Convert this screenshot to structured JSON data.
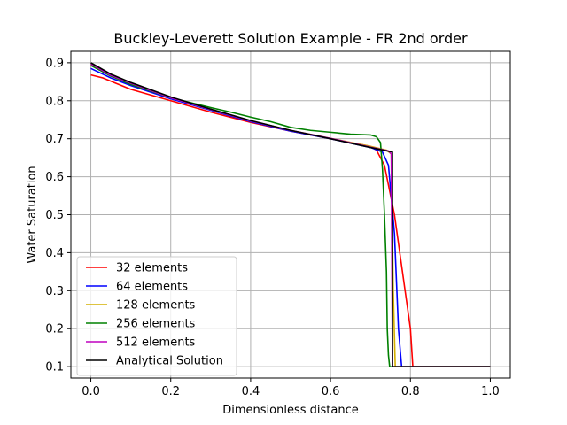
{
  "chart_data": {
    "type": "line",
    "title": "Buckley-Leverett Solution Example - FR 2nd order",
    "xlabel": "Dimensionless distance",
    "ylabel": "Water Saturation",
    "xlim": [
      -0.05,
      1.05
    ],
    "ylim": [
      0.07,
      0.93
    ],
    "xticks": [
      0.0,
      0.2,
      0.4,
      0.6,
      0.8,
      1.0
    ],
    "xtick_labels": [
      "0.0",
      "0.2",
      "0.4",
      "0.6",
      "0.8",
      "1.0"
    ],
    "yticks": [
      0.1,
      0.2,
      0.3,
      0.4,
      0.5,
      0.6,
      0.7,
      0.8,
      0.9
    ],
    "ytick_labels": [
      "0.1",
      "0.2",
      "0.3",
      "0.4",
      "0.5",
      "0.6",
      "0.7",
      "0.8",
      "0.9"
    ],
    "grid": true,
    "legend_position": "lower-left",
    "series": [
      {
        "name": "32 elements",
        "color": "#ff0000",
        "x": [
          0.0,
          0.03,
          0.1,
          0.2,
          0.3,
          0.4,
          0.5,
          0.6,
          0.7,
          0.715,
          0.735,
          0.76,
          0.8,
          0.806,
          1.0
        ],
        "y": [
          0.868,
          0.86,
          0.83,
          0.8,
          0.77,
          0.743,
          0.72,
          0.7,
          0.68,
          0.67,
          0.63,
          0.5,
          0.2,
          0.1,
          0.1
        ]
      },
      {
        "name": "64 elements",
        "color": "#0000ff",
        "x": [
          0.0,
          0.05,
          0.1,
          0.2,
          0.3,
          0.4,
          0.5,
          0.6,
          0.7,
          0.73,
          0.745,
          0.76,
          0.77,
          0.778,
          1.0
        ],
        "y": [
          0.885,
          0.86,
          0.84,
          0.805,
          0.775,
          0.745,
          0.72,
          0.7,
          0.677,
          0.665,
          0.63,
          0.45,
          0.2,
          0.1,
          0.1
        ]
      },
      {
        "name": "128 elements",
        "color": "#d4b000",
        "x": [
          0.0,
          0.05,
          0.1,
          0.2,
          0.3,
          0.4,
          0.5,
          0.6,
          0.7,
          0.74,
          0.752,
          0.757,
          0.762,
          1.0
        ],
        "y": [
          0.895,
          0.865,
          0.845,
          0.808,
          0.777,
          0.747,
          0.722,
          0.701,
          0.68,
          0.67,
          0.66,
          0.3,
          0.1,
          0.1
        ]
      },
      {
        "name": "256 elements",
        "color": "#008000",
        "x": [
          0.0,
          0.05,
          0.1,
          0.2,
          0.3,
          0.35,
          0.4,
          0.45,
          0.5,
          0.55,
          0.6,
          0.65,
          0.7,
          0.715,
          0.725,
          0.73,
          0.735,
          0.74,
          0.742,
          0.745,
          0.748,
          1.0
        ],
        "y": [
          0.893,
          0.865,
          0.843,
          0.808,
          0.782,
          0.77,
          0.757,
          0.745,
          0.73,
          0.722,
          0.717,
          0.712,
          0.71,
          0.705,
          0.69,
          0.62,
          0.5,
          0.35,
          0.2,
          0.13,
          0.1,
          0.1
        ]
      },
      {
        "name": "512 elements",
        "color": "#bf00bf",
        "x": [
          0.0,
          0.05,
          0.1,
          0.2,
          0.3,
          0.4,
          0.5,
          0.6,
          0.7,
          0.745,
          0.752,
          0.755,
          1.0
        ],
        "y": [
          0.897,
          0.867,
          0.846,
          0.808,
          0.777,
          0.747,
          0.722,
          0.701,
          0.678,
          0.668,
          0.66,
          0.1,
          0.1
        ]
      },
      {
        "name": "Analytical Solution",
        "color": "#000000",
        "x": [
          0.0,
          0.05,
          0.1,
          0.2,
          0.3,
          0.4,
          0.5,
          0.6,
          0.7,
          0.755,
          0.755,
          1.0
        ],
        "y": [
          0.9,
          0.87,
          0.848,
          0.81,
          0.778,
          0.748,
          0.722,
          0.7,
          0.677,
          0.665,
          0.1,
          0.1
        ]
      }
    ]
  }
}
